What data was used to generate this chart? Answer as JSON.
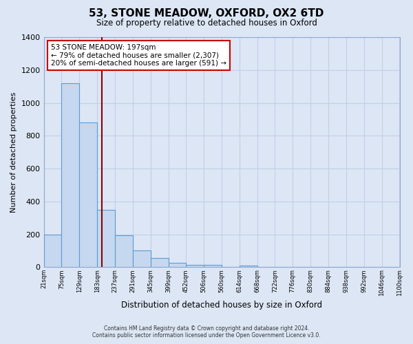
{
  "title": "53, STONE MEADOW, OXFORD, OX2 6TD",
  "subtitle": "Size of property relative to detached houses in Oxford",
  "xlabel": "Distribution of detached houses by size in Oxford",
  "ylabel": "Number of detached properties",
  "bin_edges": [
    21,
    75,
    129,
    183,
    237,
    291,
    345,
    399,
    452,
    506,
    560,
    614,
    668,
    722,
    776,
    830,
    884,
    938,
    992,
    1046,
    1100
  ],
  "bin_counts": [
    200,
    1120,
    880,
    350,
    195,
    100,
    55,
    25,
    15,
    15,
    0,
    10,
    0,
    0,
    0,
    0,
    0,
    0,
    0,
    0
  ],
  "bar_facecolor": "#c5d8ef",
  "bar_edgecolor": "#5b9bd5",
  "background_color": "#dce6f5",
  "plot_bg_color": "#dce6f5",
  "grid_color": "#c0cfe8",
  "property_line_x": 197,
  "property_line_color": "#8b0000",
  "annotation_box_color": "#ffffff",
  "annotation_box_edgecolor": "#cc0000",
  "annotation_text_line1": "53 STONE MEADOW: 197sqm",
  "annotation_text_line2": "← 79% of detached houses are smaller (2,307)",
  "annotation_text_line3": "20% of semi-detached houses are larger (591) →",
  "ylim": [
    0,
    1400
  ],
  "yticks": [
    0,
    200,
    400,
    600,
    800,
    1000,
    1200,
    1400
  ],
  "tick_labels": [
    "21sqm",
    "75sqm",
    "129sqm",
    "183sqm",
    "237sqm",
    "291sqm",
    "345sqm",
    "399sqm",
    "452sqm",
    "506sqm",
    "560sqm",
    "614sqm",
    "668sqm",
    "722sqm",
    "776sqm",
    "830sqm",
    "884sqm",
    "938sqm",
    "992sqm",
    "1046sqm",
    "1100sqm"
  ],
  "footer_line1": "Contains HM Land Registry data © Crown copyright and database right 2024.",
  "footer_line2": "Contains public sector information licensed under the Open Government Licence v3.0."
}
